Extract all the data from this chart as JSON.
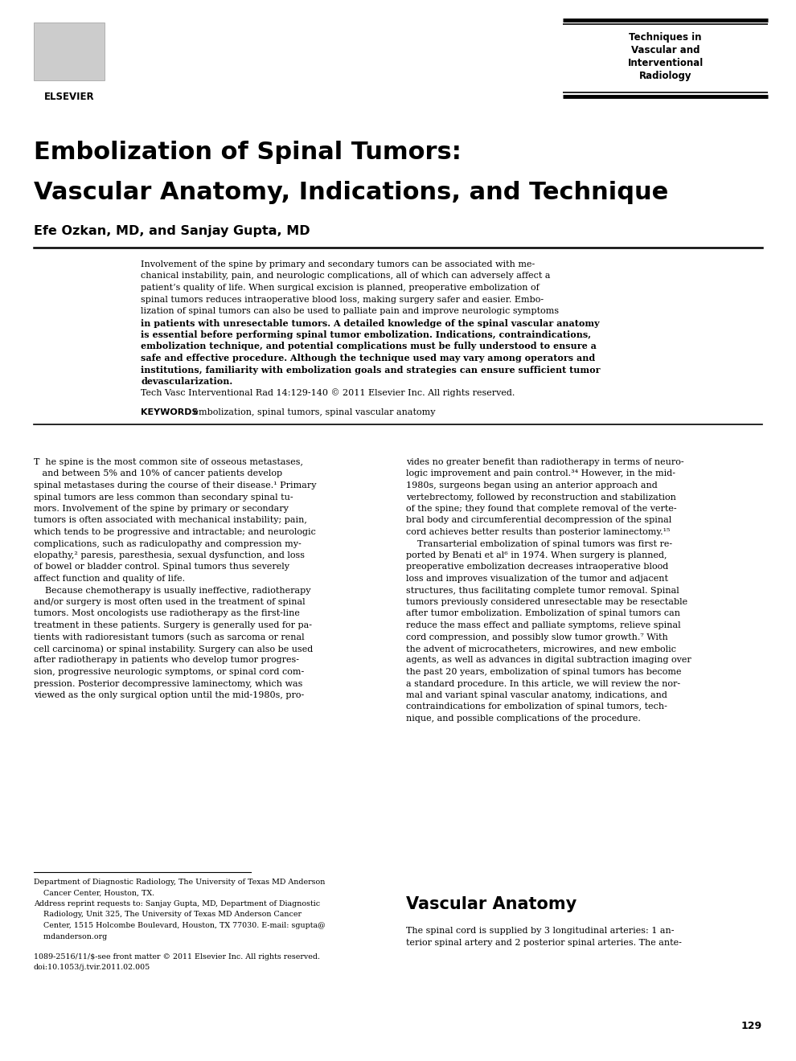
{
  "page_bg": "#ffffff",
  "title_line1": "Embolization of Spinal Tumors:",
  "title_line2": "Vascular Anatomy, Indications, and Technique",
  "authors": "Efe Ozkan, MD, and Sanjay Gupta, MD",
  "journal_name_lines": [
    "Techniques in",
    "Vascular and",
    "Interventional",
    "Radiology"
  ],
  "abstract_lines": [
    "Involvement of the spine by primary and secondary tumors can be associated with me-",
    "chanical instability, pain, and neurologic complications, all of which can adversely affect a",
    "patient’s quality of life. When surgical excision is planned, preoperative embolization of",
    "spinal tumors reduces intraoperative blood loss, making surgery safer and easier. Embo-",
    "lization of spinal tumors can also be used to palliate pain and improve neurologic symptoms",
    "in patients with unresectable tumors. A detailed knowledge of the spinal vascular anatomy",
    "is essential before performing spinal tumor embolization. Indications, contraindications,",
    "embolization technique, and potential complications must be fully understood to ensure a",
    "safe and effective procedure. Although the technique used may vary among operators and",
    "institutions, familiarity with embolization goals and strategies can ensure sufficient tumor",
    "devascularization.",
    "Tech Vasc Interventional Rad 14:129-140 © 2011 Elsevier Inc. All rights reserved."
  ],
  "keywords_label": "KEYWORDS",
  "keywords_text": " embolization, spinal tumors, spinal vascular anatomy",
  "body_col1_lines": [
    "T  he spine is the most common site of osseous metastases,",
    "   and between 5% and 10% of cancer patients develop",
    "spinal metastases during the course of their disease.¹ Primary",
    "spinal tumors are less common than secondary spinal tu-",
    "mors. Involvement of the spine by primary or secondary",
    "tumors is often associated with mechanical instability; pain,",
    "which tends to be progressive and intractable; and neurologic",
    "complications, such as radiculopathy and compression my-",
    "elopathy,² paresis, paresthesia, sexual dysfunction, and loss",
    "of bowel or bladder control. Spinal tumors thus severely",
    "affect function and quality of life.",
    "    Because chemotherapy is usually ineffective, radiotherapy",
    "and/or surgery is most often used in the treatment of spinal",
    "tumors. Most oncologists use radiotherapy as the first-line",
    "treatment in these patients. Surgery is generally used for pa-",
    "tients with radioresistant tumors (such as sarcoma or renal",
    "cell carcinoma) or spinal instability. Surgery can also be used",
    "after radiotherapy in patients who develop tumor progres-",
    "sion, progressive neurologic symptoms, or spinal cord com-",
    "pression. Posterior decompressive laminectomy, which was",
    "viewed as the only surgical option until the mid-1980s, pro-"
  ],
  "body_col2_lines": [
    "vides no greater benefit than radiotherapy in terms of neuro-",
    "logic improvement and pain control.³⁴ However, in the mid-",
    "1980s, surgeons began using an anterior approach and",
    "vertebrectomy, followed by reconstruction and stabilization",
    "of the spine; they found that complete removal of the verte-",
    "bral body and circumferential decompression of the spinal",
    "cord achieves better results than posterior laminectomy.¹⁵",
    "    Transarterial embolization of spinal tumors was first re-",
    "ported by Benati et al⁶ in 1974. When surgery is planned,",
    "preoperative embolization decreases intraoperative blood",
    "loss and improves visualization of the tumor and adjacent",
    "structures, thus facilitating complete tumor removal. Spinal",
    "tumors previously considered unresectable may be resectable",
    "after tumor embolization. Embolization of spinal tumors can",
    "reduce the mass effect and palliate symptoms, relieve spinal",
    "cord compression, and possibly slow tumor growth.⁷ With",
    "the advent of microcatheters, microwires, and new embolic",
    "agents, as well as advances in digital subtraction imaging over",
    "the past 20 years, embolization of spinal tumors has become",
    "a standard procedure. In this article, we will review the nor-",
    "mal and variant spinal vascular anatomy, indications, and",
    "contraindications for embolization of spinal tumors, tech-",
    "nique, and possible complications of the procedure."
  ],
  "section_header": "Vascular Anatomy",
  "section_body_lines": [
    "The spinal cord is supplied by 3 longitudinal arteries: 1 an-",
    "terior spinal artery and 2 posterior spinal arteries. The ante-"
  ],
  "footnote_col1_lines": [
    "Department of Diagnostic Radiology, The University of Texas MD Anderson",
    "    Cancer Center, Houston, TX.",
    "Address reprint requests to: Sanjay Gupta, MD, Department of Diagnostic",
    "    Radiology, Unit 325, The University of Texas MD Anderson Cancer",
    "    Center, 1515 Holcombe Boulevard, Houston, TX 77030. E-mail: sgupta@",
    "    mdanderson.org"
  ],
  "footnote_col1_bottom": [
    "1089-2516/11/$-see front matter © 2011 Elsevier Inc. All rights reserved.",
    "doi:10.1053/j.tvir.2011.02.005"
  ],
  "page_number": "129"
}
